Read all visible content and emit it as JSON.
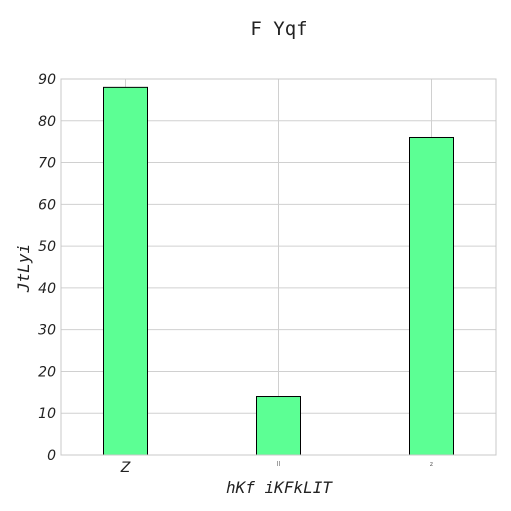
{
  "chart_data": {
    "type": "bar",
    "title": "F Yqf",
    "xlabel": "hKf iKFkLIT",
    "ylabel": "JtLyi",
    "categories": [
      "Z",
      "ll",
      "z"
    ],
    "values": [
      88,
      14,
      76
    ],
    "ylim": [
      0,
      90
    ],
    "yticks": [
      0,
      10,
      20,
      30,
      40,
      50,
      60,
      70,
      80,
      90
    ],
    "grid": true,
    "bar_color": "#5cff94",
    "edge_color": "#000000"
  }
}
